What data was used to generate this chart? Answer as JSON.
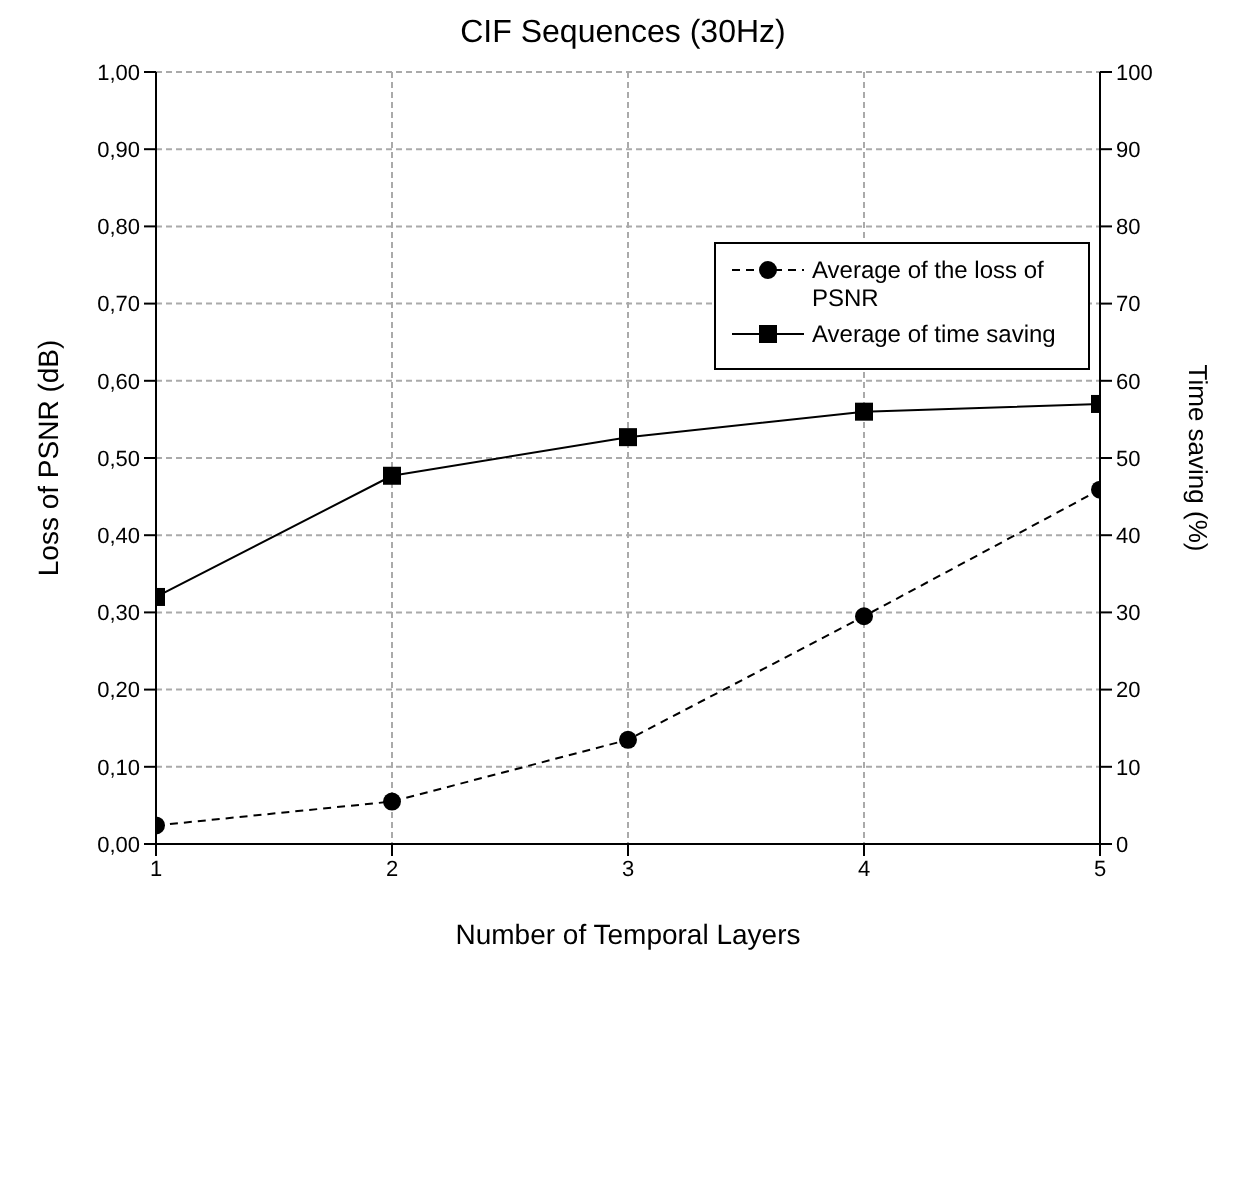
{
  "chart_data": {
    "type": "line",
    "title": "CIF Sequences (30Hz)",
    "xlabel": "Number of Temporal Layers",
    "ylabel": "Loss of PSNR (dB)",
    "y2label": "Time saving  (%)",
    "x": [
      1,
      2,
      3,
      4,
      5
    ],
    "series": [
      {
        "name": "Average of the loss of PSNR",
        "color": "#000000",
        "marker": "circle",
        "line_style": "dashed",
        "values": [
          0.024,
          0.055,
          0.135,
          0.295,
          0.459
        ]
      },
      {
        "name": "Average of time saving",
        "color": "#000000",
        "marker": "square",
        "line_style": "solid",
        "axis": "y2",
        "values": [
          32,
          47.7,
          52.7,
          56,
          57
        ]
      }
    ],
    "xlim": [
      1,
      5
    ],
    "xticks": [
      1,
      2,
      3,
      4,
      5
    ],
    "ylim": [
      0,
      1
    ],
    "yticks": [
      {
        "value": 0,
        "label": "0,00"
      },
      {
        "value": 0.1,
        "label": "0,10"
      },
      {
        "value": 0.2,
        "label": "0,20"
      },
      {
        "value": 0.3,
        "label": "0,30"
      },
      {
        "value": 0.4,
        "label": "0,40"
      },
      {
        "value": 0.5,
        "label": "0,50"
      },
      {
        "value": 0.6,
        "label": "0,60"
      },
      {
        "value": 0.7,
        "label": "0,70"
      },
      {
        "value": 0.8,
        "label": "0,80"
      },
      {
        "value": 0.9,
        "label": "0,90"
      },
      {
        "value": 1,
        "label": "1,00"
      }
    ],
    "y2lim": [
      0,
      100
    ],
    "y2ticks": [
      0,
      10,
      20,
      30,
      40,
      50,
      60,
      70,
      80,
      90,
      100
    ],
    "grid": true,
    "legend": "top right"
  }
}
